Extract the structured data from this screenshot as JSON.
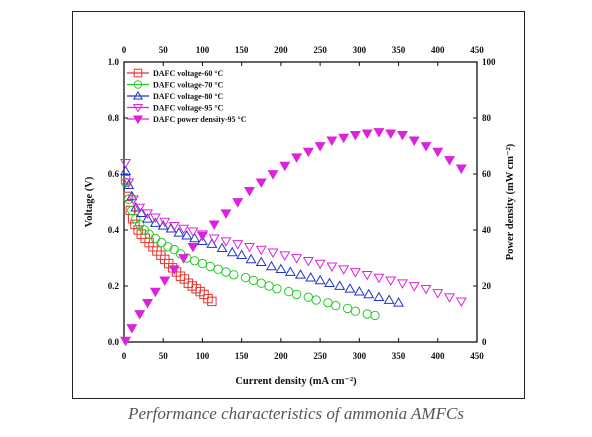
{
  "caption": "Performance characteristics of ammonia AMFCs",
  "chart_data": {
    "type": "scatter",
    "xlabel": "Current density (mA cm⁻²)",
    "ylabel_left": "Voltage (V)",
    "ylabel_right": "Power density (mW cm⁻²)",
    "x_ticks": [
      "0",
      "50",
      "100",
      "150",
      "200",
      "250",
      "300",
      "350",
      "400",
      "450"
    ],
    "y_left_ticks": [
      "0.0",
      "0.2",
      "0.4",
      "0.6",
      "0.8",
      "1.0"
    ],
    "y_right_ticks": [
      "0",
      "20",
      "40",
      "60",
      "80",
      "100"
    ],
    "xlim": [
      0,
      450
    ],
    "ylim_left": [
      0,
      1.0
    ],
    "ylim_right": [
      0,
      100
    ],
    "legend_position": "top-left",
    "series": [
      {
        "name": "DAFC voltage-60 °C",
        "axis": "left",
        "marker": "square-open",
        "color": "#e8322b",
        "x": [
          2,
          5,
          8,
          11,
          14,
          18,
          22,
          27,
          32,
          37,
          42,
          47,
          52,
          57,
          62,
          67,
          72,
          77,
          82,
          87,
          92,
          97,
          102,
          107,
          112
        ],
        "y": [
          0.58,
          0.52,
          0.47,
          0.44,
          0.42,
          0.4,
          0.385,
          0.37,
          0.355,
          0.34,
          0.325,
          0.31,
          0.295,
          0.28,
          0.265,
          0.25,
          0.235,
          0.225,
          0.21,
          0.2,
          0.19,
          0.18,
          0.17,
          0.155,
          0.145
        ]
      },
      {
        "name": "DAFC voltage-70 °C",
        "axis": "left",
        "marker": "circle-open",
        "color": "#22cc22",
        "x": [
          2,
          6,
          10,
          15,
          20,
          26,
          32,
          40,
          48,
          56,
          64,
          72,
          80,
          90,
          100,
          110,
          120,
          130,
          140,
          155,
          165,
          175,
          185,
          195,
          210,
          220,
          235,
          245,
          260,
          270,
          285,
          295,
          310,
          320
        ],
        "y": [
          0.57,
          0.51,
          0.47,
          0.44,
          0.42,
          0.4,
          0.385,
          0.37,
          0.355,
          0.34,
          0.33,
          0.315,
          0.3,
          0.29,
          0.28,
          0.27,
          0.26,
          0.25,
          0.24,
          0.23,
          0.22,
          0.21,
          0.2,
          0.19,
          0.18,
          0.17,
          0.16,
          0.15,
          0.14,
          0.13,
          0.12,
          0.11,
          0.1,
          0.095
        ]
      },
      {
        "name": "DAFC voltage-80 °C",
        "axis": "left",
        "marker": "triangle-up-open",
        "color": "#2233cc",
        "x": [
          2,
          6,
          10,
          15,
          22,
          30,
          40,
          50,
          60,
          70,
          80,
          90,
          100,
          112,
          125,
          138,
          150,
          162,
          175,
          188,
          200,
          212,
          225,
          238,
          250,
          262,
          275,
          288,
          300,
          312,
          325,
          338,
          350
        ],
        "y": [
          0.61,
          0.56,
          0.52,
          0.48,
          0.46,
          0.44,
          0.425,
          0.415,
          0.405,
          0.39,
          0.38,
          0.37,
          0.36,
          0.35,
          0.335,
          0.32,
          0.31,
          0.295,
          0.285,
          0.27,
          0.26,
          0.25,
          0.24,
          0.23,
          0.22,
          0.21,
          0.2,
          0.19,
          0.18,
          0.17,
          0.16,
          0.15,
          0.14
        ]
      },
      {
        "name": "DAFC voltage-95 °C",
        "axis": "left",
        "marker": "triangle-down-open",
        "color": "#dd22dd",
        "x": [
          2,
          6,
          12,
          20,
          30,
          40,
          52,
          64,
          76,
          88,
          100,
          115,
          130,
          145,
          160,
          175,
          190,
          205,
          220,
          235,
          250,
          265,
          280,
          295,
          310,
          325,
          340,
          355,
          370,
          385,
          400,
          415,
          430
        ],
        "y": [
          0.64,
          0.57,
          0.51,
          0.48,
          0.46,
          0.445,
          0.43,
          0.415,
          0.405,
          0.395,
          0.385,
          0.37,
          0.36,
          0.35,
          0.34,
          0.33,
          0.32,
          0.31,
          0.3,
          0.29,
          0.28,
          0.27,
          0.26,
          0.25,
          0.24,
          0.23,
          0.22,
          0.21,
          0.2,
          0.19,
          0.175,
          0.16,
          0.145
        ]
      },
      {
        "name": "DAFC power density-95 °C",
        "axis": "right",
        "marker": "triangle-down-filled",
        "color": "#dd22dd",
        "x": [
          2,
          10,
          20,
          30,
          40,
          52,
          64,
          76,
          88,
          100,
          115,
          130,
          145,
          160,
          175,
          190,
          205,
          220,
          235,
          250,
          265,
          280,
          295,
          310,
          325,
          340,
          355,
          370,
          385,
          400,
          415,
          430
        ],
        "y": [
          0.5,
          5,
          10,
          14,
          18,
          22,
          26,
          30,
          34,
          38,
          42,
          46,
          50,
          54,
          57,
          60,
          63,
          66,
          68,
          70,
          72,
          73,
          74,
          74.5,
          75,
          74.5,
          74,
          72,
          70,
          68,
          65,
          62
        ]
      }
    ]
  }
}
